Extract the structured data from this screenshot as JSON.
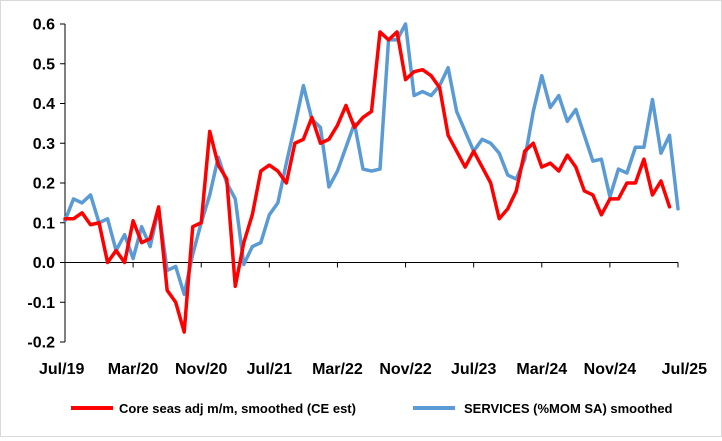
{
  "chart_data": {
    "type": "line",
    "title": "",
    "xlabel": "",
    "ylabel": "",
    "ylim": [
      -0.2,
      0.6
    ],
    "yticks": [
      -0.2,
      -0.1,
      0.0,
      0.1,
      0.2,
      0.3,
      0.4,
      0.5,
      0.6
    ],
    "ytick_labels": [
      "-0.2",
      "-0.1",
      "0.0",
      "0.1",
      "0.2",
      "0.3",
      "0.4",
      "0.5",
      "0.6"
    ],
    "x_start": "2019-07",
    "x_end": "2025-07",
    "xtick_labels": [
      "Jul/19",
      "Mar/20",
      "Nov/20",
      "Jul/21",
      "Mar/22",
      "Nov/22",
      "Jul/23",
      "Mar/24",
      "Nov/24",
      "Jul/25"
    ],
    "grid": false,
    "legend": "bottom",
    "series": [
      {
        "name": "Core seas adj m/m, smoothed (CE est)",
        "color": "#ff0000",
        "values": [
          0.11,
          0.11,
          0.125,
          0.095,
          0.1,
          0.0,
          0.03,
          0.0,
          0.105,
          0.05,
          0.06,
          0.14,
          -0.07,
          -0.1,
          -0.175,
          0.09,
          0.1,
          0.33,
          0.245,
          0.21,
          -0.06,
          0.05,
          0.12,
          0.23,
          0.245,
          0.23,
          0.2,
          0.3,
          0.31,
          0.365,
          0.3,
          0.31,
          0.345,
          0.395,
          0.34,
          0.365,
          0.38,
          0.58,
          0.56,
          0.58,
          0.46,
          0.48,
          0.485,
          0.47,
          0.44,
          0.32,
          0.28,
          0.24,
          0.28,
          0.24,
          0.2,
          0.11,
          0.135,
          0.18,
          0.28,
          0.3,
          0.24,
          0.25,
          0.23,
          0.27,
          0.24,
          0.18,
          0.17,
          0.12,
          0.16,
          0.16,
          0.2,
          0.2,
          0.26,
          0.17,
          0.205,
          0.14
        ]
      },
      {
        "name": "SERVICES (%MOM SA) smoothed",
        "color": "#5b9bd5",
        "values": [
          0.105,
          0.16,
          0.15,
          0.17,
          0.1,
          0.11,
          0.03,
          0.07,
          0.01,
          0.09,
          0.04,
          0.135,
          -0.02,
          -0.01,
          -0.08,
          0.02,
          0.1,
          0.17,
          0.265,
          0.2,
          0.16,
          -0.005,
          0.04,
          0.05,
          0.12,
          0.15,
          0.25,
          0.345,
          0.445,
          0.36,
          0.34,
          0.19,
          0.23,
          0.29,
          0.35,
          0.235,
          0.23,
          0.235,
          0.56,
          0.56,
          0.6,
          0.42,
          0.43,
          0.42,
          0.445,
          0.49,
          0.38,
          0.33,
          0.28,
          0.31,
          0.3,
          0.275,
          0.22,
          0.21,
          0.26,
          0.38,
          0.47,
          0.39,
          0.42,
          0.355,
          0.385,
          0.32,
          0.255,
          0.26,
          0.165,
          0.235,
          0.225,
          0.29,
          0.29,
          0.41,
          0.275,
          0.32,
          0.135
        ]
      }
    ]
  }
}
